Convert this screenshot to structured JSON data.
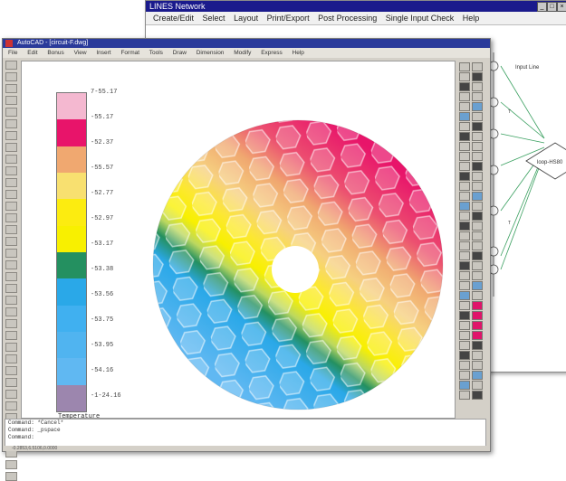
{
  "back_window": {
    "title": "LINES Network",
    "menu": [
      "Create/Edit",
      "Select",
      "Layout",
      "Print/Export",
      "Post Processing",
      "Single Input Check",
      "Help"
    ],
    "diagram": {
      "input_label": "Input Line",
      "node_label": "loop-HS80",
      "edge_label": "T"
    }
  },
  "front_window": {
    "title": "AutoCAD - [circuit-F.dwg]",
    "menu": [
      "File",
      "Edit",
      "Bonus",
      "View",
      "Insert",
      "Format",
      "Tools",
      "Draw",
      "Dimension",
      "Modify",
      "Express",
      "Help"
    ]
  },
  "legend": {
    "title": "Temperature",
    "labels": [
      "7-55.17",
      "-55.17",
      "-52.37",
      "-55.57",
      "-52.77",
      "-52.97",
      "-53.17",
      "-53.38",
      "-53.56",
      "-53.75",
      "-53.95",
      "-54.16",
      "-1-24.16"
    ],
    "colors": [
      "#f4b8d0",
      "#e8146a",
      "#f0a870",
      "#f8e070",
      "#fcec10",
      "#f8f000",
      "#249060",
      "#2aa8e8",
      "#40b0f0",
      "#50b4f0",
      "#60b8f2",
      "#9c86ae"
    ]
  },
  "console": {
    "lines": [
      "Command: *Cancel*",
      "Command: _pspace",
      "Command:"
    ]
  },
  "status": {
    "text": "-0.2853,6.5106,0.0000"
  }
}
